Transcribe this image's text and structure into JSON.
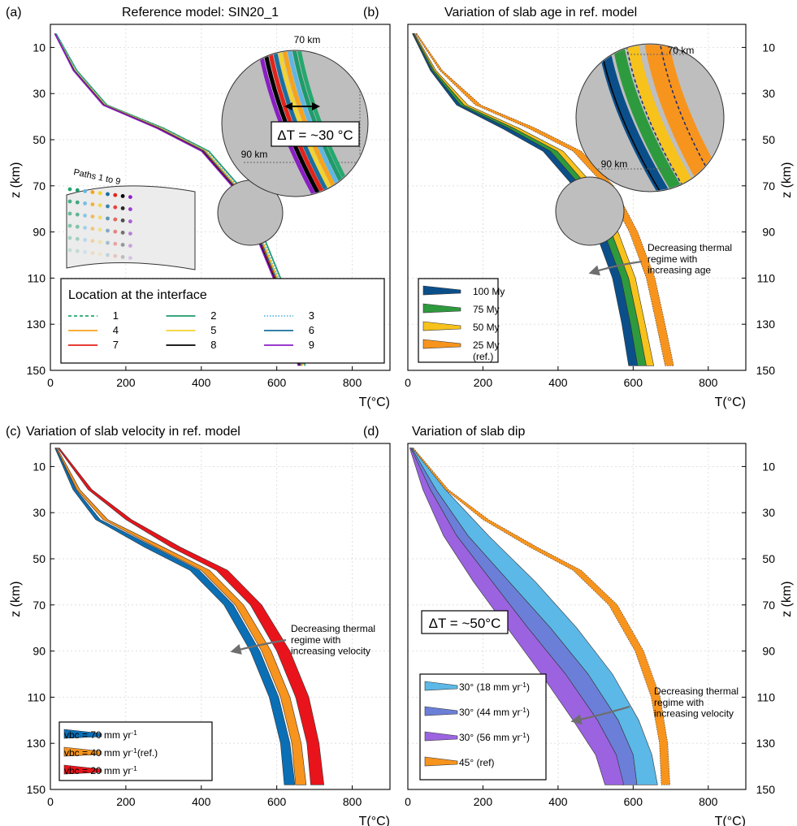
{
  "colors": {
    "orange_ref": "#f7941d",
    "p1": "#25a86e",
    "p2": "#1f9a6b",
    "p3": "#5fb6e3",
    "p4": "#f7a21b",
    "p5": "#f2d230",
    "p6": "#1a6f9e",
    "p7": "#e2231a",
    "p8": "#000000",
    "p9": "#8b1ec4",
    "age100": "#0b4f8a",
    "age75": "#2e9a3e",
    "age50": "#f7c21b",
    "age25": "#f7941d",
    "vel70": "#0a6fb5",
    "vel40": "#f7941d",
    "vel20": "#e9141b",
    "dip18": "#5cb8e6",
    "dip44": "#6b7fd8",
    "dip56": "#9b63e0",
    "dip45": "#f7941d",
    "zoom_fill": "#bebebe",
    "arrow": "#6e6e6e"
  },
  "chart_data": [
    {
      "panel": "a",
      "panel_label": "(a)",
      "type": "line",
      "title": "Reference model: SIN20_1",
      "xlabel": "T(°C)",
      "ylabel": "z (km)",
      "xlim": [
        0,
        900
      ],
      "ylim": [
        150,
        0
      ],
      "xticks": [
        "0",
        "200",
        "400",
        "600",
        "800"
      ],
      "yticks": [
        "10",
        "30",
        "50",
        "70",
        "90",
        "110",
        "130",
        "150"
      ],
      "grid": true,
      "y_axis_side": "left",
      "legend_title": "Location at the interface",
      "legend_position": "bottom-left",
      "series": [
        {
          "name": "1",
          "color_key": "p1",
          "style": "dashed",
          "x": [
            15,
            70,
            150,
            300,
            420,
            500,
            560,
            610,
            650,
            675
          ],
          "y": [
            4,
            20,
            35,
            45,
            55,
            70,
            90,
            110,
            130,
            148
          ]
        },
        {
          "name": "2",
          "color_key": "p2",
          "style": "solid",
          "x": [
            15,
            70,
            150,
            300,
            420,
            500,
            560,
            610,
            650,
            675
          ],
          "y": [
            4,
            20,
            35,
            45,
            55,
            70,
            90,
            110,
            130,
            148
          ]
        },
        {
          "name": "3",
          "color_key": "p3",
          "style": "dotted",
          "x": [
            14,
            68,
            148,
            296,
            416,
            496,
            556,
            606,
            646,
            671
          ],
          "y": [
            4,
            20,
            35,
            45,
            55,
            70,
            90,
            110,
            130,
            148
          ]
        },
        {
          "name": "4",
          "color_key": "p4",
          "style": "solid",
          "x": [
            12,
            65,
            145,
            292,
            412,
            492,
            552,
            602,
            642,
            668
          ],
          "y": [
            4,
            20,
            35,
            45,
            55,
            70,
            90,
            110,
            130,
            148
          ]
        },
        {
          "name": "5",
          "color_key": "p5",
          "style": "solid",
          "x": [
            12,
            64,
            144,
            290,
            410,
            490,
            550,
            600,
            640,
            666
          ],
          "y": [
            4,
            20,
            35,
            45,
            55,
            70,
            90,
            110,
            130,
            148
          ]
        },
        {
          "name": "6",
          "color_key": "p6",
          "style": "solid",
          "x": [
            12,
            63,
            143,
            288,
            408,
            488,
            548,
            598,
            638,
            664
          ],
          "y": [
            4,
            20,
            35,
            45,
            55,
            70,
            90,
            110,
            130,
            148
          ]
        },
        {
          "name": "7",
          "color_key": "p7",
          "style": "solid",
          "x": [
            12,
            62,
            142,
            286,
            405,
            485,
            545,
            595,
            635,
            661
          ],
          "y": [
            4,
            20,
            35,
            45,
            55,
            70,
            90,
            110,
            130,
            148
          ]
        },
        {
          "name": "8",
          "color_key": "p8",
          "style": "solid",
          "x": [
            12,
            62,
            141,
            284,
            403,
            483,
            543,
            593,
            633,
            659
          ],
          "y": [
            4,
            20,
            35,
            45,
            55,
            70,
            90,
            110,
            130,
            148
          ]
        },
        {
          "name": "9",
          "color_key": "p9",
          "style": "solid",
          "x": [
            12,
            61,
            140,
            282,
            401,
            481,
            541,
            591,
            631,
            657
          ],
          "y": [
            4,
            20,
            35,
            45,
            55,
            70,
            90,
            110,
            130,
            148
          ]
        }
      ],
      "annotations": {
        "zoom_label_top": "70 km",
        "zoom_label_bottom": "90 km",
        "delta_t": "ΔT = ~30 °C",
        "inset_label": "Paths 1 to 9"
      }
    },
    {
      "panel": "b",
      "panel_label": "(b)",
      "type": "area",
      "title": "Variation of slab age in ref. model",
      "xlabel": "T(°C)",
      "ylabel": "z (km)",
      "xlim": [
        0,
        900
      ],
      "ylim": [
        150,
        0
      ],
      "xticks": [
        "0",
        "200",
        "400",
        "600",
        "800"
      ],
      "yticks": [
        "10",
        "30",
        "50",
        "70",
        "90",
        "110",
        "130",
        "150"
      ],
      "grid": true,
      "y_axis_side": "right",
      "legend_position": "bottom-left",
      "series": [
        {
          "name": "100 My",
          "color_key": "age100",
          "y": [
            4,
            20,
            35,
            45,
            55,
            70,
            90,
            110,
            130,
            148
          ],
          "x_low": [
            12,
            60,
            130,
            250,
            360,
            440,
            500,
            545,
            570,
            588
          ],
          "x_high": [
            14,
            65,
            140,
            268,
            380,
            460,
            522,
            568,
            593,
            612
          ]
        },
        {
          "name": "75 My",
          "color_key": "age75",
          "y": [
            4,
            20,
            35,
            45,
            55,
            70,
            90,
            110,
            130,
            148
          ],
          "x_low": [
            14,
            65,
            140,
            268,
            380,
            460,
            522,
            568,
            593,
            612
          ],
          "x_high": [
            16,
            70,
            150,
            282,
            398,
            478,
            542,
            588,
            614,
            635
          ]
        },
        {
          "name": "50 My",
          "color_key": "age50",
          "y": [
            4,
            20,
            35,
            45,
            55,
            70,
            90,
            110,
            130,
            148
          ],
          "x_low": [
            16,
            70,
            150,
            282,
            398,
            478,
            542,
            588,
            614,
            635
          ],
          "x_high": [
            18,
            75,
            160,
            296,
            414,
            496,
            560,
            606,
            632,
            655
          ]
        },
        {
          "name": "25 My\n(ref.)",
          "color_key": "age25",
          "y": [
            4,
            20,
            35,
            45,
            55,
            70,
            90,
            110,
            130,
            148
          ],
          "x_low": [
            20,
            85,
            180,
            320,
            440,
            525,
            590,
            635,
            662,
            685
          ],
          "x_high": [
            24,
            92,
            195,
            340,
            462,
            548,
            612,
            658,
            685,
            708
          ]
        }
      ],
      "annotations": {
        "zoom_label_top": "70 km",
        "zoom_label_bottom": "90 km",
        "arrow_text": "Decreasing thermal\nregime with\nincreasing age"
      }
    },
    {
      "panel": "c",
      "panel_label": "(c)",
      "type": "area",
      "title": "Variation of slab velocity in ref. model",
      "xlabel": "T(°C)",
      "ylabel": "z (km)",
      "xlim": [
        0,
        900
      ],
      "ylim": [
        150,
        0
      ],
      "xticks": [
        "0",
        "200",
        "400",
        "600",
        "800"
      ],
      "yticks": [
        "10",
        "30",
        "50",
        "70",
        "90",
        "110",
        "130",
        "150"
      ],
      "grid": true,
      "y_axis_side": "left",
      "legend_position": "bottom-left",
      "series": [
        {
          "name": "vbc = 70 mm yr⁻¹",
          "color_key": "vel70",
          "y": [
            2,
            20,
            33,
            45,
            55,
            70,
            90,
            110,
            130,
            148
          ],
          "x_low": [
            12,
            60,
            120,
            250,
            370,
            460,
            530,
            580,
            610,
            620
          ],
          "x_high": [
            15,
            68,
            132,
            275,
            395,
            485,
            555,
            605,
            635,
            648
          ]
        },
        {
          "name": "vbc = 40 mm yr⁻¹(ref.)",
          "color_key": "vel40",
          "y": [
            2,
            20,
            33,
            45,
            55,
            70,
            90,
            110,
            130,
            148
          ],
          "x_low": [
            15,
            70,
            140,
            280,
            400,
            490,
            560,
            610,
            640,
            650
          ],
          "x_high": [
            18,
            78,
            152,
            300,
            422,
            512,
            585,
            635,
            665,
            678
          ]
        },
        {
          "name": "vbc = 20 mm yr⁻¹",
          "color_key": "vel20",
          "y": [
            2,
            20,
            33,
            45,
            55,
            70,
            90,
            110,
            130,
            148
          ],
          "x_low": [
            20,
            100,
            200,
            320,
            440,
            530,
            600,
            650,
            680,
            690
          ],
          "x_high": [
            24,
            110,
            215,
            345,
            470,
            560,
            635,
            685,
            712,
            725
          ]
        }
      ],
      "annotations": {
        "arrow_text": "Decreasing thermal\nregime with\nincreasing velocity"
      }
    },
    {
      "panel": "d",
      "panel_label": "(d)",
      "type": "area",
      "title": "Variation of slab dip",
      "xlabel": "T(°C)",
      "ylabel": "z (km)",
      "xlim": [
        0,
        900
      ],
      "ylim": [
        150,
        0
      ],
      "xticks": [
        "0",
        "200",
        "400",
        "600",
        "800"
      ],
      "yticks": [
        "10",
        "30",
        "50",
        "70",
        "90",
        "110",
        "130",
        "150"
      ],
      "grid": true,
      "y_axis_side": "right",
      "legend_position": "bottom-left",
      "series": [
        {
          "name": "30° (18 mm yr⁻¹)",
          "color_key": "dip18",
          "y": [
            2,
            20,
            40,
            60,
            80,
            100,
            120,
            135,
            148
          ],
          "x_low": [
            8,
            75,
            160,
            270,
            380,
            480,
            560,
            600,
            610
          ],
          "x_high": [
            12,
            100,
            215,
            340,
            450,
            545,
            615,
            650,
            665
          ]
        },
        {
          "name": "30° (44 mm yr⁻¹)",
          "color_key": "dip44",
          "y": [
            2,
            20,
            40,
            60,
            80,
            100,
            120,
            135,
            148
          ],
          "x_low": [
            7,
            60,
            130,
            225,
            320,
            420,
            505,
            555,
            570
          ],
          "x_high": [
            10,
            75,
            160,
            270,
            380,
            480,
            560,
            600,
            610
          ]
        },
        {
          "name": "30° (56 mm yr⁻¹)",
          "color_key": "dip56",
          "y": [
            2,
            20,
            40,
            60,
            80,
            100,
            120,
            135,
            148
          ],
          "x_low": [
            5,
            40,
            95,
            175,
            265,
            355,
            440,
            500,
            525
          ],
          "x_high": [
            8,
            60,
            130,
            225,
            320,
            420,
            505,
            555,
            575
          ]
        },
        {
          "name": "45° (ref)",
          "color_key": "dip45",
          "y": [
            2,
            20,
            33,
            45,
            55,
            70,
            90,
            110,
            130,
            148
          ],
          "x_low": [
            12,
            100,
            200,
            325,
            440,
            535,
            605,
            648,
            670,
            675
          ],
          "x_high": [
            15,
            108,
            215,
            345,
            462,
            558,
            628,
            672,
            692,
            698
          ]
        }
      ],
      "annotations": {
        "delta_t": "ΔT = ~50°C",
        "arrow_text": "Decreasing thermal\nregime with\nincreasing velocity"
      }
    }
  ]
}
